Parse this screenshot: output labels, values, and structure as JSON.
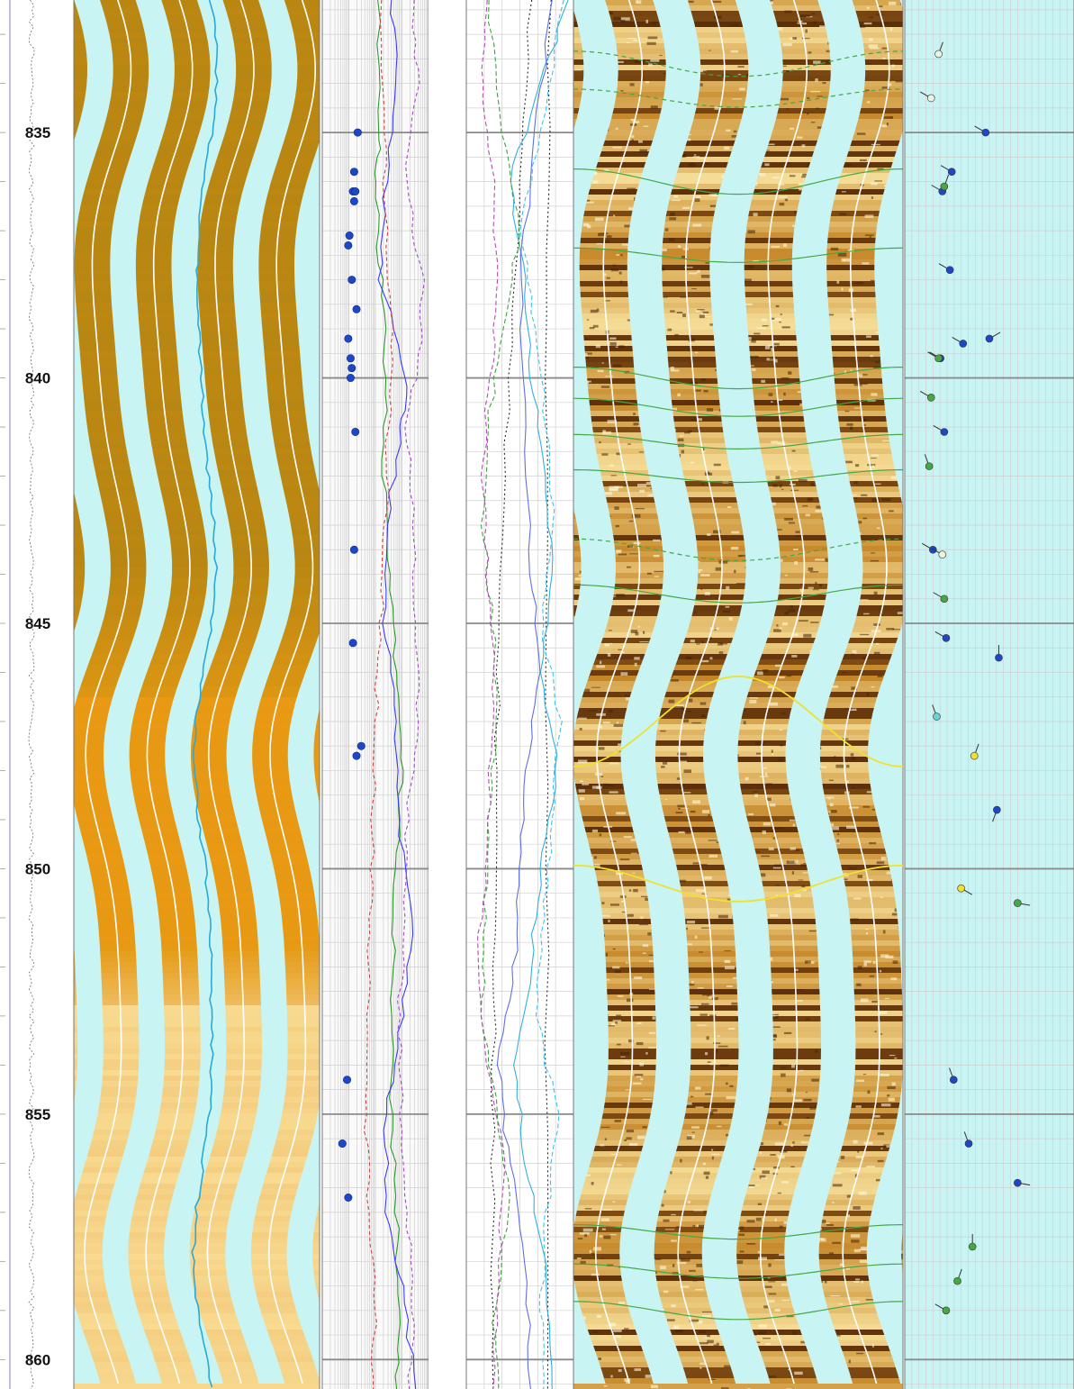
{
  "chart_data": {
    "type": "line",
    "title": "",
    "depth_axis": {
      "range": [
        832.3,
        860.6
      ],
      "major_ticks": [
        835,
        840,
        845,
        850,
        855,
        860
      ],
      "tick_labels": [
        "835",
        "840",
        "845",
        "850",
        "855",
        "860"
      ]
    },
    "tracks": [
      {
        "name": "depth-track"
      },
      {
        "name": "static-image-track"
      },
      {
        "name": "curves-track-1"
      },
      {
        "name": "depth-track-2"
      },
      {
        "name": "curves-track-2"
      },
      {
        "name": "dynamic-image-track"
      },
      {
        "name": "tadpole-track"
      }
    ],
    "dip_tadpoles": [
      {
        "depth": 833.4,
        "dip": 18,
        "azimuth": 20,
        "class": "open"
      },
      {
        "depth": 834.3,
        "dip": 14,
        "azimuth": 300,
        "class": "open"
      },
      {
        "depth": 835.0,
        "dip": 43,
        "azimuth": 300,
        "class": "conductive"
      },
      {
        "depth": 835.8,
        "dip": 25,
        "azimuth": 300,
        "class": "conductive"
      },
      {
        "depth": 836.2,
        "dip": 20,
        "azimuth": 300,
        "class": "conductive"
      },
      {
        "depth": 836.1,
        "dip": 21,
        "azimuth": 20,
        "class": "bed"
      },
      {
        "depth": 837.8,
        "dip": 24,
        "azimuth": 300,
        "class": "conductive"
      },
      {
        "depth": 839.3,
        "dip": 31,
        "azimuth": 300,
        "class": "conductive"
      },
      {
        "depth": 839.2,
        "dip": 45,
        "azimuth": 60,
        "class": "conductive"
      },
      {
        "depth": 839.6,
        "dip": 19,
        "azimuth": 300,
        "class": "conductive"
      },
      {
        "depth": 839.6,
        "dip": 18,
        "azimuth": 300,
        "class": "bed"
      },
      {
        "depth": 840.4,
        "dip": 14,
        "azimuth": 300,
        "class": "bed"
      },
      {
        "depth": 841.1,
        "dip": 21,
        "azimuth": 300,
        "class": "conductive"
      },
      {
        "depth": 841.8,
        "dip": 13,
        "azimuth": 340,
        "class": "bed"
      },
      {
        "depth": 843.5,
        "dip": 15,
        "azimuth": 300,
        "class": "conductive"
      },
      {
        "depth": 843.6,
        "dip": 20,
        "azimuth": 300,
        "class": "open"
      },
      {
        "depth": 844.5,
        "dip": 21,
        "azimuth": 300,
        "class": "bed"
      },
      {
        "depth": 845.3,
        "dip": 22,
        "azimuth": 300,
        "class": "conductive"
      },
      {
        "depth": 845.7,
        "dip": 50,
        "azimuth": 0,
        "class": "conductive"
      },
      {
        "depth": 846.9,
        "dip": 17,
        "azimuth": 340,
        "class": "resistive"
      },
      {
        "depth": 847.7,
        "dip": 37,
        "azimuth": 20,
        "class": "yellow"
      },
      {
        "depth": 848.8,
        "dip": 49,
        "azimuth": 200,
        "class": "conductive"
      },
      {
        "depth": 850.4,
        "dip": 30,
        "azimuth": 120,
        "class": "yellow"
      },
      {
        "depth": 850.7,
        "dip": 60,
        "azimuth": 100,
        "class": "bed"
      },
      {
        "depth": 854.3,
        "dip": 26,
        "azimuth": 340,
        "class": "conductive"
      },
      {
        "depth": 855.6,
        "dip": 34,
        "azimuth": 340,
        "class": "conductive"
      },
      {
        "depth": 856.4,
        "dip": 60,
        "azimuth": 100,
        "class": "conductive"
      },
      {
        "depth": 857.7,
        "dip": 36,
        "azimuth": 0,
        "class": "bed"
      },
      {
        "depth": 858.4,
        "dip": 28,
        "azimuth": 20,
        "class": "bed"
      },
      {
        "depth": 859.0,
        "dip": 22,
        "azimuth": 300,
        "class": "bed"
      }
    ],
    "dip_points_track3": [
      {
        "depth": 835.0,
        "dip": 30
      },
      {
        "depth": 835.8,
        "dip": 27
      },
      {
        "depth": 836.2,
        "dip": 26
      },
      {
        "depth": 836.2,
        "dip": 28
      },
      {
        "depth": 836.4,
        "dip": 27
      },
      {
        "depth": 837.1,
        "dip": 23
      },
      {
        "depth": 837.3,
        "dip": 22
      },
      {
        "depth": 838.0,
        "dip": 25
      },
      {
        "depth": 838.6,
        "dip": 29
      },
      {
        "depth": 839.2,
        "dip": 22
      },
      {
        "depth": 839.6,
        "dip": 24
      },
      {
        "depth": 839.8,
        "dip": 25
      },
      {
        "depth": 840.0,
        "dip": 24
      },
      {
        "depth": 841.1,
        "dip": 28
      },
      {
        "depth": 843.5,
        "dip": 27
      },
      {
        "depth": 845.4,
        "dip": 26
      },
      {
        "depth": 847.5,
        "dip": 33
      },
      {
        "depth": 847.7,
        "dip": 29
      },
      {
        "depth": 854.3,
        "dip": 21
      },
      {
        "depth": 855.6,
        "dip": 17
      },
      {
        "depth": 856.7,
        "dip": 22
      }
    ],
    "sinusoids": [
      {
        "depth": 833.6,
        "amp": 14,
        "azimuth": 180,
        "class": "minor"
      },
      {
        "depth": 834.3,
        "amp": 10,
        "azimuth": 180,
        "class": "minor"
      },
      {
        "depth": 836.0,
        "amp": 14,
        "azimuth": 180,
        "class": "bed"
      },
      {
        "depth": 837.5,
        "amp": 8,
        "azimuth": 180,
        "class": "bed"
      },
      {
        "depth": 840.0,
        "amp": 12,
        "azimuth": 180,
        "class": "bed"
      },
      {
        "depth": 840.6,
        "amp": 10,
        "azimuth": 180,
        "class": "bed"
      },
      {
        "depth": 841.3,
        "amp": 8,
        "azimuth": 180,
        "class": "bed"
      },
      {
        "depth": 842.0,
        "amp": 7,
        "azimuth": 180,
        "class": "bed"
      },
      {
        "depth": 843.5,
        "amp": 12,
        "azimuth": 180,
        "class": "minor"
      },
      {
        "depth": 844.4,
        "amp": 10,
        "azimuth": 180,
        "class": "bed"
      },
      {
        "depth": 847.0,
        "amp": 50,
        "azimuth": 0,
        "class": "yellow"
      },
      {
        "depth": 850.3,
        "amp": 20,
        "azimuth": 180,
        "class": "yellow"
      },
      {
        "depth": 857.4,
        "amp": 8,
        "azimuth": 180,
        "class": "bed"
      },
      {
        "depth": 858.2,
        "amp": 8,
        "azimuth": 180,
        "class": "bed"
      },
      {
        "depth": 859.0,
        "amp": 10,
        "azimuth": 180,
        "class": "bed"
      }
    ],
    "curves": [
      {
        "key": "t3_green",
        "color": "#2a9a2a",
        "dash": "",
        "track": 3,
        "depth": [
          832.3,
          835,
          836,
          838,
          840,
          842,
          844,
          846,
          847.5,
          849,
          851,
          853,
          855,
          857,
          859,
          860.6
        ],
        "value": [
          0.52,
          0.55,
          0.5,
          0.55,
          0.6,
          0.58,
          0.62,
          0.7,
          0.75,
          0.72,
          0.68,
          0.66,
          0.65,
          0.7,
          0.72,
          0.7
        ]
      },
      {
        "key": "t3_blue",
        "color": "#3a3aff",
        "dash": "",
        "track": 3,
        "depth": [
          832.3,
          834,
          836,
          838,
          840,
          841,
          843,
          845,
          847,
          849,
          851,
          853,
          855,
          857,
          858.5,
          860.6
        ],
        "value": [
          0.65,
          0.7,
          0.6,
          0.55,
          0.8,
          0.75,
          0.6,
          0.58,
          0.7,
          0.72,
          0.85,
          0.75,
          0.6,
          0.6,
          0.75,
          0.88
        ]
      },
      {
        "key": "t3_magenta_dash",
        "color": "#a64ac8",
        "dash": "4,3",
        "track": 3,
        "depth": [
          832.3,
          834,
          836,
          838,
          839.5,
          841,
          843,
          845,
          847,
          849,
          851,
          853,
          855,
          857,
          859,
          860.6
        ],
        "value": [
          0.85,
          0.9,
          0.78,
          0.95,
          0.92,
          0.8,
          0.85,
          0.88,
          0.9,
          0.8,
          0.78,
          0.72,
          0.75,
          0.8,
          0.85,
          0.82
        ]
      },
      {
        "key": "t3_red_dash",
        "color": "#d04040",
        "dash": "4,3",
        "track": 3,
        "depth": [
          832.3,
          835,
          837,
          839,
          841,
          843,
          845,
          847,
          849,
          851,
          853,
          855,
          857,
          859,
          860.6
        ],
        "value": [
          0.55,
          0.58,
          0.6,
          0.65,
          0.62,
          0.6,
          0.55,
          0.5,
          0.48,
          0.45,
          0.42,
          0.4,
          0.45,
          0.5,
          0.48
        ]
      },
      {
        "key": "t5_black_dot1",
        "color": "#222222",
        "dash": "2,3",
        "track": 5,
        "depth": [
          832.3,
          836,
          840,
          844,
          848,
          852,
          856,
          860.6
        ],
        "value": [
          0.6,
          0.52,
          0.4,
          0.32,
          0.28,
          0.26,
          0.25,
          0.25
        ]
      },
      {
        "key": "t5_black_dot2",
        "color": "#222222",
        "dash": "2,3",
        "track": 5,
        "depth": [
          832.3,
          840,
          850,
          860.6
        ],
        "value": [
          0.78,
          0.76,
          0.75,
          0.76
        ]
      },
      {
        "key": "t5_cyan",
        "color": "#30b0e0",
        "dash": "",
        "track": 5,
        "depth": [
          832.3,
          834,
          836,
          838,
          840,
          842,
          844,
          846,
          848,
          850,
          852,
          854,
          856,
          858,
          860.6
        ],
        "value": [
          0.95,
          0.7,
          0.4,
          0.55,
          0.6,
          0.75,
          0.8,
          0.7,
          0.85,
          0.7,
          0.6,
          0.45,
          0.55,
          0.75,
          0.8
        ]
      },
      {
        "key": "t5_cyan_dash",
        "color": "#40c0e8",
        "dash": "5,3",
        "track": 5,
        "depth": [
          832.3,
          835,
          837,
          839,
          841,
          843,
          845,
          847,
          849,
          851,
          853,
          855,
          857,
          859,
          860.6
        ],
        "value": [
          0.9,
          0.7,
          0.5,
          0.65,
          0.75,
          0.82,
          0.7,
          0.88,
          0.8,
          0.72,
          0.65,
          0.85,
          0.75,
          0.7,
          0.72
        ]
      },
      {
        "key": "t5_green_dash",
        "color": "#40a040",
        "dash": "5,3",
        "track": 5,
        "depth": [
          832.3,
          835,
          837,
          839,
          841,
          843,
          845,
          847,
          849,
          851,
          853,
          855,
          857,
          859,
          860.6
        ],
        "value": [
          0.2,
          0.35,
          0.5,
          0.35,
          0.2,
          0.15,
          0.25,
          0.3,
          0.2,
          0.18,
          0.15,
          0.3,
          0.4,
          0.25,
          0.3
        ]
      },
      {
        "key": "t5_magenta_dash",
        "color": "#b050b0",
        "dash": "5,3",
        "track": 5,
        "depth": [
          832.3,
          834,
          836,
          838,
          840,
          842,
          844,
          846,
          848,
          850,
          852,
          854,
          856,
          858,
          860.6
        ],
        "value": [
          0.18,
          0.15,
          0.25,
          0.3,
          0.22,
          0.15,
          0.2,
          0.25,
          0.22,
          0.18,
          0.1,
          0.2,
          0.35,
          0.3,
          0.25
        ]
      },
      {
        "key": "t5_blue",
        "color": "#6070e0",
        "dash": "",
        "track": 5,
        "depth": [
          832.3,
          835,
          838,
          841,
          844,
          846,
          848,
          850,
          852,
          854,
          856,
          858,
          860.6
        ],
        "value": [
          0.8,
          0.65,
          0.5,
          0.55,
          0.6,
          0.7,
          0.55,
          0.5,
          0.45,
          0.3,
          0.4,
          0.55,
          0.6
        ]
      }
    ],
    "colors": {
      "borehole_gap": "#c8f4f4",
      "static_dark": "#b88612",
      "static_mid": "#e59a14",
      "static_light": "#f2c87a",
      "dynamic_base": "#c48526",
      "conductive": "#1e46c8",
      "bed": "#44a844",
      "resistive": "#60d8d8",
      "yellow": "#f0e030",
      "open": "#e8f4e0",
      "grid_major": "#8a8a8a",
      "grid_minor": "#d0d0d0"
    }
  }
}
